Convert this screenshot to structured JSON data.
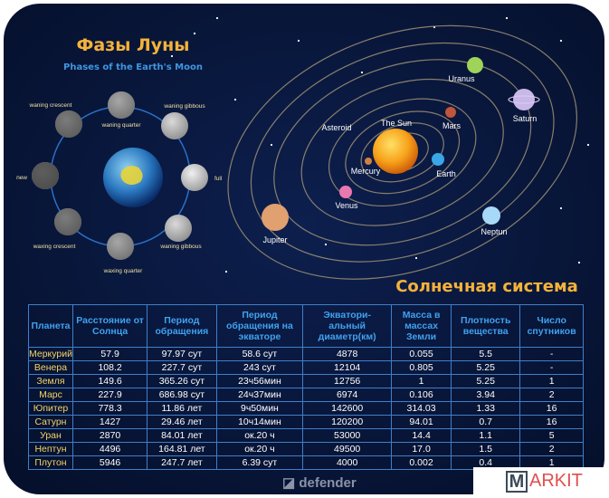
{
  "moon": {
    "title": "Фазы Луны",
    "subtitle": "Phases of the Earth's Moon",
    "phases": [
      {
        "label": "waning quarter"
      },
      {
        "label": "waning gibbous"
      },
      {
        "label": "full"
      },
      {
        "label": "waning gibbous"
      },
      {
        "label": "waxing quarter"
      },
      {
        "label": "waxing crescent"
      },
      {
        "label": "new"
      },
      {
        "label": "waning crescent"
      }
    ]
  },
  "solar": {
    "title": "Солнечная система",
    "bodies": [
      {
        "label": "Uranus",
        "color": "#9fd35a"
      },
      {
        "label": "Saturn",
        "color": "#c8b8e8"
      },
      {
        "label": "Mars",
        "color": "#c0553a"
      },
      {
        "label": "The Sun",
        "color": "#f7a21a"
      },
      {
        "label": "Mercury",
        "color": "#d08040"
      },
      {
        "label": "Earth",
        "color": "#3aa6e8"
      },
      {
        "label": "Venus",
        "color": "#e878b0"
      },
      {
        "label": "Jupiter",
        "color": "#e0a070"
      },
      {
        "label": "Neptun",
        "color": "#a8d8f8"
      },
      {
        "label": "Asteroid",
        "color": ""
      }
    ]
  },
  "table": {
    "headers": [
      "Планета",
      "Расстояние от Солнца",
      "Период обращения",
      "Период обращения на экваторе",
      "Экватори-альный диаметр(км)",
      "Масса в массах Земли",
      "Плотность вещества",
      "Число спутников"
    ],
    "rows": [
      [
        "Меркурий",
        "57.9",
        "97.97 сут",
        "58.6 сут",
        "4878",
        "0.055",
        "5.5",
        "-"
      ],
      [
        "Венера",
        "108.2",
        "227.7 сут",
        "243 сут",
        "12104",
        "0.805",
        "5.25",
        "-"
      ],
      [
        "Земля",
        "149.6",
        "365.26 сут",
        "23ч56мин",
        "12756",
        "1",
        "5.25",
        "1"
      ],
      [
        "Марс",
        "227.9",
        "686.98 сут",
        "24ч37мин",
        "6974",
        "0.106",
        "3.94",
        "2"
      ],
      [
        "Юпитер",
        "778.3",
        "11.86 лет",
        "9ч50мин",
        "142600",
        "314.03",
        "1.33",
        "16"
      ],
      [
        "Сатурн",
        "1427",
        "29.46 лет",
        "10ч14мин",
        "120200",
        "94.01",
        "0.7",
        "16"
      ],
      [
        "Уран",
        "2870",
        "84.01 лет",
        "ок.20 ч",
        "53000",
        "14.4",
        "1.1",
        "5"
      ],
      [
        "Нептун",
        "4496",
        "164.81 лет",
        "ок.20 ч",
        "49500",
        "17.0",
        "1.5",
        "2"
      ],
      [
        "Плутон",
        "5946",
        "247.7 лет",
        "6.39 сут",
        "4000",
        "0.002",
        "0.4",
        "1"
      ]
    ]
  },
  "brand": "defender",
  "watermark": {
    "first": "M",
    "rest": "ARKIT"
  }
}
